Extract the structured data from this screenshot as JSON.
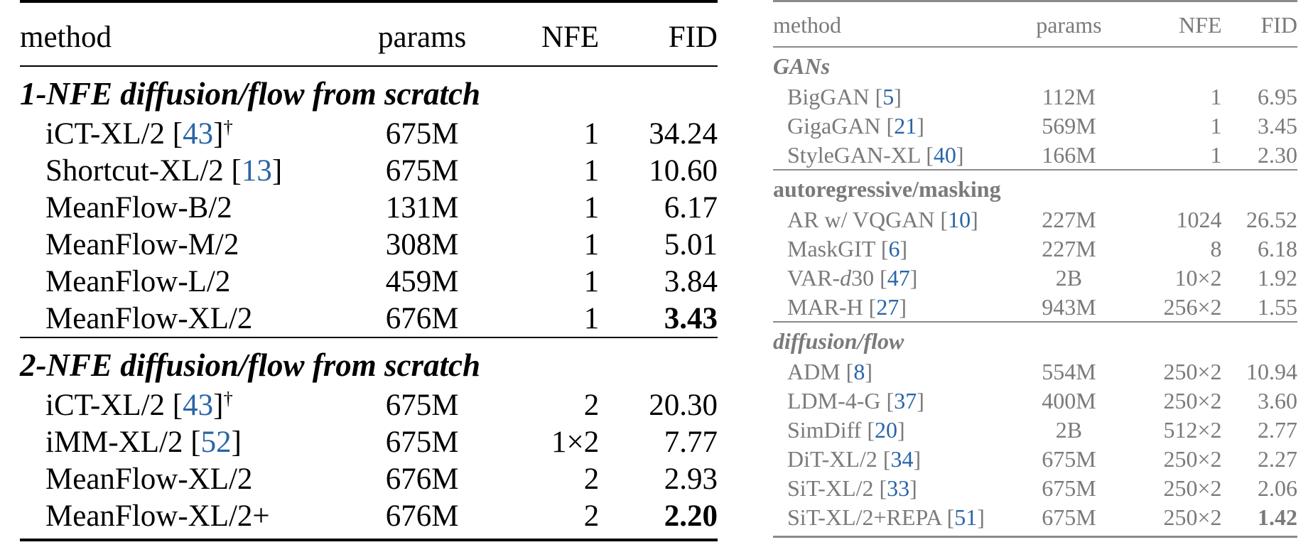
{
  "left_table": {
    "headers": [
      "method",
      "params",
      "NFE",
      "FID"
    ],
    "sections": [
      {
        "title": "1-NFE diffusion/flow from scratch",
        "rows": [
          {
            "method": "iCT-XL/2 [",
            "ref": "43",
            "suffix": "]",
            "mark": "†",
            "params": "675M",
            "nfe": "1",
            "fid": "34.24",
            "best": false
          },
          {
            "method": "Shortcut-XL/2 [",
            "ref": "13",
            "suffix": "]",
            "mark": "",
            "params": "675M",
            "nfe": "1",
            "fid": "10.60",
            "best": false
          },
          {
            "method": "MeanFlow-B/2",
            "ref": "",
            "suffix": "",
            "mark": "",
            "params": "131M",
            "nfe": "1",
            "fid": "6.17",
            "best": false
          },
          {
            "method": "MeanFlow-M/2",
            "ref": "",
            "suffix": "",
            "mark": "",
            "params": "308M",
            "nfe": "1",
            "fid": "5.01",
            "best": false
          },
          {
            "method": "MeanFlow-L/2",
            "ref": "",
            "suffix": "",
            "mark": "",
            "params": "459M",
            "nfe": "1",
            "fid": "3.84",
            "best": false
          },
          {
            "method": "MeanFlow-XL/2",
            "ref": "",
            "suffix": "",
            "mark": "",
            "params": "676M",
            "nfe": "1",
            "fid": "3.43",
            "best": true
          }
        ]
      },
      {
        "title": "2-NFE diffusion/flow from scratch",
        "rows": [
          {
            "method": "iCT-XL/2 [",
            "ref": "43",
            "suffix": "]",
            "mark": "†",
            "params": "675M",
            "nfe": "2",
            "fid": "20.30",
            "best": false
          },
          {
            "method": "iMM-XL/2 [",
            "ref": "52",
            "suffix": "]",
            "mark": "",
            "params": "675M",
            "nfe": "1×2",
            "fid": "7.77",
            "best": false
          },
          {
            "method": "MeanFlow-XL/2",
            "ref": "",
            "suffix": "",
            "mark": "",
            "params": "676M",
            "nfe": "2",
            "fid": "2.93",
            "best": false
          },
          {
            "method": "MeanFlow-XL/2+",
            "ref": "",
            "suffix": "",
            "mark": "",
            "params": "676M",
            "nfe": "2",
            "fid": "2.20",
            "best": true
          }
        ]
      }
    ]
  },
  "right_table": {
    "headers": [
      "method",
      "params",
      "NFE",
      "FID"
    ],
    "sections": [
      {
        "title": "GANs",
        "italic": true,
        "rows": [
          {
            "method": "BigGAN [",
            "ref": "5",
            "suffix": "]",
            "params": "112M",
            "nfe": "1",
            "fid": "6.95",
            "best": false
          },
          {
            "method": "GigaGAN [",
            "ref": "21",
            "suffix": "]",
            "params": "569M",
            "nfe": "1",
            "fid": "3.45",
            "best": false
          },
          {
            "method": "StyleGAN-XL [",
            "ref": "40",
            "suffix": "]",
            "params": "166M",
            "nfe": "1",
            "fid": "2.30",
            "best": false
          }
        ]
      },
      {
        "title": "autoregressive/masking",
        "italic": false,
        "rows": [
          {
            "method": "AR w/ VQGAN [",
            "ref": "10",
            "suffix": "]",
            "params": "227M",
            "nfe": "1024",
            "fid": "26.52",
            "best": false
          },
          {
            "method": "MaskGIT [",
            "ref": "6",
            "suffix": "]",
            "params": "227M",
            "nfe": "8",
            "fid": "6.18",
            "best": false
          },
          {
            "method_pre": "VAR-",
            "method_var": "d",
            "method": "30 [",
            "ref": "47",
            "suffix": "]",
            "params": "2B",
            "nfe": "10×2",
            "fid": "1.92",
            "best": false
          },
          {
            "method": "MAR-H [",
            "ref": "27",
            "suffix": "]",
            "params": "943M",
            "nfe": "256×2",
            "fid": "1.55",
            "best": false
          }
        ]
      },
      {
        "title": "diffusion/flow",
        "italic": true,
        "rows": [
          {
            "method": "ADM [",
            "ref": "8",
            "suffix": "]",
            "params": "554M",
            "nfe": "250×2",
            "fid": "10.94",
            "best": false
          },
          {
            "method": "LDM-4-G [",
            "ref": "37",
            "suffix": "]",
            "params": "400M",
            "nfe": "250×2",
            "fid": "3.60",
            "best": false
          },
          {
            "method": "SimDiff [",
            "ref": "20",
            "suffix": "]",
            "params": "2B",
            "nfe": "512×2",
            "fid": "2.77",
            "best": false
          },
          {
            "method": "DiT-XL/2 [",
            "ref": "34",
            "suffix": "]",
            "params": "675M",
            "nfe": "250×2",
            "fid": "2.27",
            "best": false
          },
          {
            "method": "SiT-XL/2 [",
            "ref": "33",
            "suffix": "]",
            "params": "675M",
            "nfe": "250×2",
            "fid": "2.06",
            "best": false
          },
          {
            "method": "SiT-XL/2+REPA [",
            "ref": "51",
            "suffix": "]",
            "params": "675M",
            "nfe": "250×2",
            "fid": "1.42",
            "best": true
          }
        ]
      }
    ]
  }
}
